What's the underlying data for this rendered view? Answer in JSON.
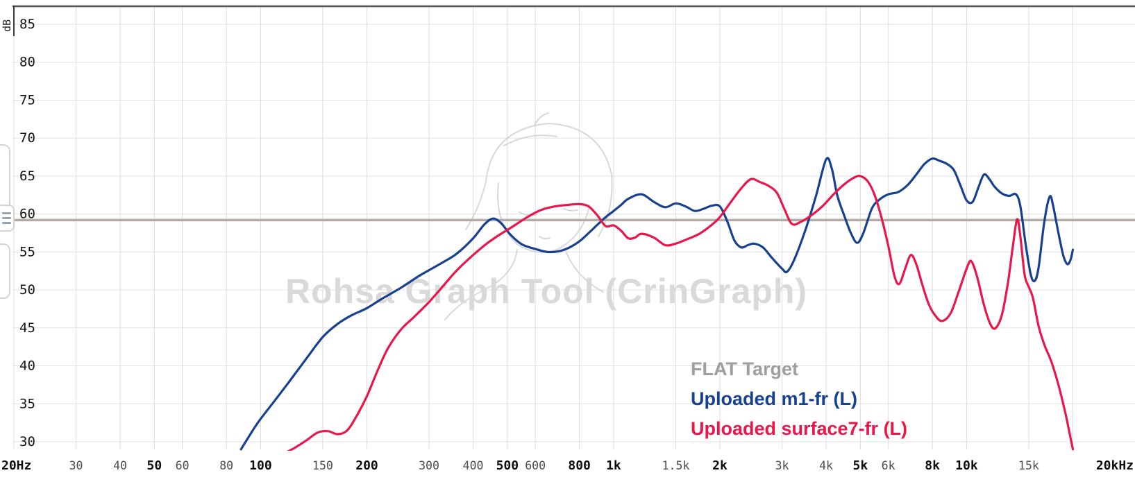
{
  "app": {
    "watermark_title": "Rohsa Graph Tool (CrinGraph)"
  },
  "side_panel": {
    "menu_icon": "hamburger-icon"
  },
  "chart_data": {
    "type": "line",
    "title": "",
    "xlabel": "",
    "ylabel": "dB",
    "grid": true,
    "legend_position": "bottom-right",
    "x_axis": {
      "scale": "log",
      "min": 20,
      "max": 20000,
      "ticks": [
        {
          "f": 20,
          "label": "20Hz",
          "major": true
        },
        {
          "f": 30,
          "label": "30",
          "major": false
        },
        {
          "f": 40,
          "label": "40",
          "major": false
        },
        {
          "f": 50,
          "label": "50",
          "major": true
        },
        {
          "f": 60,
          "label": "60",
          "major": false
        },
        {
          "f": 80,
          "label": "80",
          "major": false
        },
        {
          "f": 100,
          "label": "100",
          "major": true
        },
        {
          "f": 150,
          "label": "150",
          "major": false
        },
        {
          "f": 200,
          "label": "200",
          "major": true
        },
        {
          "f": 300,
          "label": "300",
          "major": false
        },
        {
          "f": 400,
          "label": "400",
          "major": false
        },
        {
          "f": 500,
          "label": "500",
          "major": true
        },
        {
          "f": 600,
          "label": "600",
          "major": false
        },
        {
          "f": 800,
          "label": "800",
          "major": true
        },
        {
          "f": 1000,
          "label": "1k",
          "major": true
        },
        {
          "f": 1500,
          "label": "1.5k",
          "major": false
        },
        {
          "f": 2000,
          "label": "2k",
          "major": true
        },
        {
          "f": 3000,
          "label": "3k",
          "major": false
        },
        {
          "f": 4000,
          "label": "4k",
          "major": false
        },
        {
          "f": 5000,
          "label": "5k",
          "major": true
        },
        {
          "f": 6000,
          "label": "6k",
          "major": false
        },
        {
          "f": 8000,
          "label": "8k",
          "major": true
        },
        {
          "f": 10000,
          "label": "10k",
          "major": true
        },
        {
          "f": 15000,
          "label": "15k",
          "major": false
        },
        {
          "f": 20000,
          "label": "20kHz",
          "major": true
        }
      ]
    },
    "y_axis": {
      "label": "dB",
      "min": 30,
      "max": 85,
      "step": 5,
      "ticks": [
        85,
        80,
        75,
        70,
        65,
        60,
        55,
        50,
        45,
        40,
        35,
        30
      ]
    },
    "target": {
      "name": "FLAT Target",
      "db": 59.2,
      "color": "#b3aaa6",
      "legend_color": "#9e9e9e"
    },
    "series": [
      {
        "name": "Uploaded m1-fr (L)",
        "color": "#17418f",
        "points": [
          [
            88,
            29
          ],
          [
            95,
            31.5
          ],
          [
            100,
            33
          ],
          [
            110,
            35.5
          ],
          [
            120,
            37.8
          ],
          [
            135,
            41
          ],
          [
            150,
            43.8
          ],
          [
            165,
            45.5
          ],
          [
            180,
            46.6
          ],
          [
            200,
            47.6
          ],
          [
            220,
            48.8
          ],
          [
            250,
            50.3
          ],
          [
            280,
            51.8
          ],
          [
            300,
            52.6
          ],
          [
            330,
            53.7
          ],
          [
            360,
            54.8
          ],
          [
            400,
            56.8
          ],
          [
            430,
            58.6
          ],
          [
            455,
            59.4
          ],
          [
            480,
            58.8
          ],
          [
            510,
            57.3
          ],
          [
            550,
            56
          ],
          [
            600,
            55.4
          ],
          [
            650,
            55
          ],
          [
            700,
            55.1
          ],
          [
            750,
            55.6
          ],
          [
            800,
            56.4
          ],
          [
            850,
            57.5
          ],
          [
            900,
            58.6
          ],
          [
            950,
            59.6
          ],
          [
            1000,
            60.4
          ],
          [
            1050,
            61.2
          ],
          [
            1100,
            62
          ],
          [
            1200,
            62.6
          ],
          [
            1300,
            61.6
          ],
          [
            1400,
            60.9
          ],
          [
            1500,
            61.4
          ],
          [
            1600,
            61
          ],
          [
            1700,
            60.4
          ],
          [
            1800,
            60.7
          ],
          [
            1900,
            61.1
          ],
          [
            2000,
            61
          ],
          [
            2100,
            59
          ],
          [
            2200,
            56.5
          ],
          [
            2300,
            55.6
          ],
          [
            2400,
            55.9
          ],
          [
            2500,
            56.1
          ],
          [
            2650,
            55.6
          ],
          [
            2800,
            54.3
          ],
          [
            3000,
            52.8
          ],
          [
            3100,
            52.4
          ],
          [
            3250,
            54
          ],
          [
            3500,
            58
          ],
          [
            3750,
            62.5
          ],
          [
            4000,
            67.2
          ],
          [
            4150,
            66
          ],
          [
            4300,
            62.5
          ],
          [
            4500,
            59.8
          ],
          [
            4700,
            57.5
          ],
          [
            4900,
            56.2
          ],
          [
            5100,
            57.5
          ],
          [
            5400,
            60.8
          ],
          [
            5700,
            62
          ],
          [
            6000,
            62.6
          ],
          [
            6400,
            62.9
          ],
          [
            6800,
            63.8
          ],
          [
            7200,
            65.2
          ],
          [
            7600,
            66.6
          ],
          [
            8000,
            67.3
          ],
          [
            8400,
            67
          ],
          [
            8800,
            66.6
          ],
          [
            9200,
            65.8
          ],
          [
            9600,
            63.8
          ],
          [
            10000,
            61.8
          ],
          [
            10400,
            61.6
          ],
          [
            10800,
            63.5
          ],
          [
            11200,
            65.2
          ],
          [
            11600,
            64.6
          ],
          [
            12000,
            63.6
          ],
          [
            12600,
            62.7
          ],
          [
            13200,
            62.4
          ],
          [
            13800,
            62.6
          ],
          [
            14200,
            61
          ],
          [
            14700,
            56
          ],
          [
            15200,
            52
          ],
          [
            15600,
            51.2
          ],
          [
            16000,
            53
          ],
          [
            16600,
            59
          ],
          [
            17200,
            62.3
          ],
          [
            17600,
            61
          ],
          [
            18200,
            57.5
          ],
          [
            18800,
            54.5
          ],
          [
            19300,
            53.4
          ],
          [
            19700,
            54
          ],
          [
            20000,
            55.3
          ]
        ]
      },
      {
        "name": "Uploaded surface7-fr (L)",
        "color": "#e9164a",
        "points": [
          [
            118,
            28.6
          ],
          [
            125,
            29.2
          ],
          [
            135,
            30.2
          ],
          [
            145,
            31.2
          ],
          [
            155,
            31.4
          ],
          [
            165,
            31
          ],
          [
            175,
            31.4
          ],
          [
            185,
            33
          ],
          [
            200,
            36
          ],
          [
            215,
            39.5
          ],
          [
            230,
            42.4
          ],
          [
            250,
            44.8
          ],
          [
            270,
            46.3
          ],
          [
            300,
            48.4
          ],
          [
            330,
            50.6
          ],
          [
            360,
            52.6
          ],
          [
            400,
            54.6
          ],
          [
            440,
            56.2
          ],
          [
            480,
            57.4
          ],
          [
            520,
            58.4
          ],
          [
            570,
            59.6
          ],
          [
            620,
            60.5
          ],
          [
            680,
            61
          ],
          [
            740,
            61.2
          ],
          [
            800,
            61.3
          ],
          [
            850,
            61
          ],
          [
            900,
            59.8
          ],
          [
            950,
            58.4
          ],
          [
            1000,
            58.5
          ],
          [
            1050,
            57.8
          ],
          [
            1100,
            56.8
          ],
          [
            1150,
            56.9
          ],
          [
            1200,
            57.4
          ],
          [
            1300,
            56.9
          ],
          [
            1400,
            55.9
          ],
          [
            1500,
            56.1
          ],
          [
            1600,
            56.6
          ],
          [
            1750,
            57.4
          ],
          [
            1900,
            58.6
          ],
          [
            2000,
            59.6
          ],
          [
            2150,
            61.6
          ],
          [
            2300,
            63.4
          ],
          [
            2450,
            64.6
          ],
          [
            2600,
            64.2
          ],
          [
            2750,
            63.7
          ],
          [
            2900,
            62.8
          ],
          [
            3050,
            60.6
          ],
          [
            3200,
            58.7
          ],
          [
            3400,
            59
          ],
          [
            3650,
            59.9
          ],
          [
            3900,
            61
          ],
          [
            4200,
            62.6
          ],
          [
            4500,
            63.9
          ],
          [
            4800,
            64.8
          ],
          [
            5000,
            65
          ],
          [
            5250,
            64.3
          ],
          [
            5500,
            62.4
          ],
          [
            5750,
            59.4
          ],
          [
            6000,
            55.8
          ],
          [
            6250,
            51.8
          ],
          [
            6450,
            50.8
          ],
          [
            6700,
            52.8
          ],
          [
            6950,
            54.6
          ],
          [
            7200,
            53.4
          ],
          [
            7500,
            50.6
          ],
          [
            7800,
            48.2
          ],
          [
            8100,
            46.8
          ],
          [
            8500,
            45.9
          ],
          [
            9000,
            46.9
          ],
          [
            9500,
            49.8
          ],
          [
            10000,
            52.8
          ],
          [
            10300,
            53.8
          ],
          [
            10700,
            51.8
          ],
          [
            11200,
            48
          ],
          [
            11700,
            45.4
          ],
          [
            12100,
            45
          ],
          [
            12600,
            46.8
          ],
          [
            13100,
            51
          ],
          [
            13500,
            55.5
          ],
          [
            13900,
            59.3
          ],
          [
            14200,
            57
          ],
          [
            14600,
            52
          ],
          [
            15000,
            50.4
          ],
          [
            15400,
            49
          ],
          [
            16000,
            45.2
          ],
          [
            16600,
            42.8
          ],
          [
            17400,
            40.5
          ],
          [
            18200,
            37.5
          ],
          [
            19000,
            34
          ],
          [
            19600,
            31
          ],
          [
            20000,
            29
          ]
        ]
      }
    ]
  }
}
